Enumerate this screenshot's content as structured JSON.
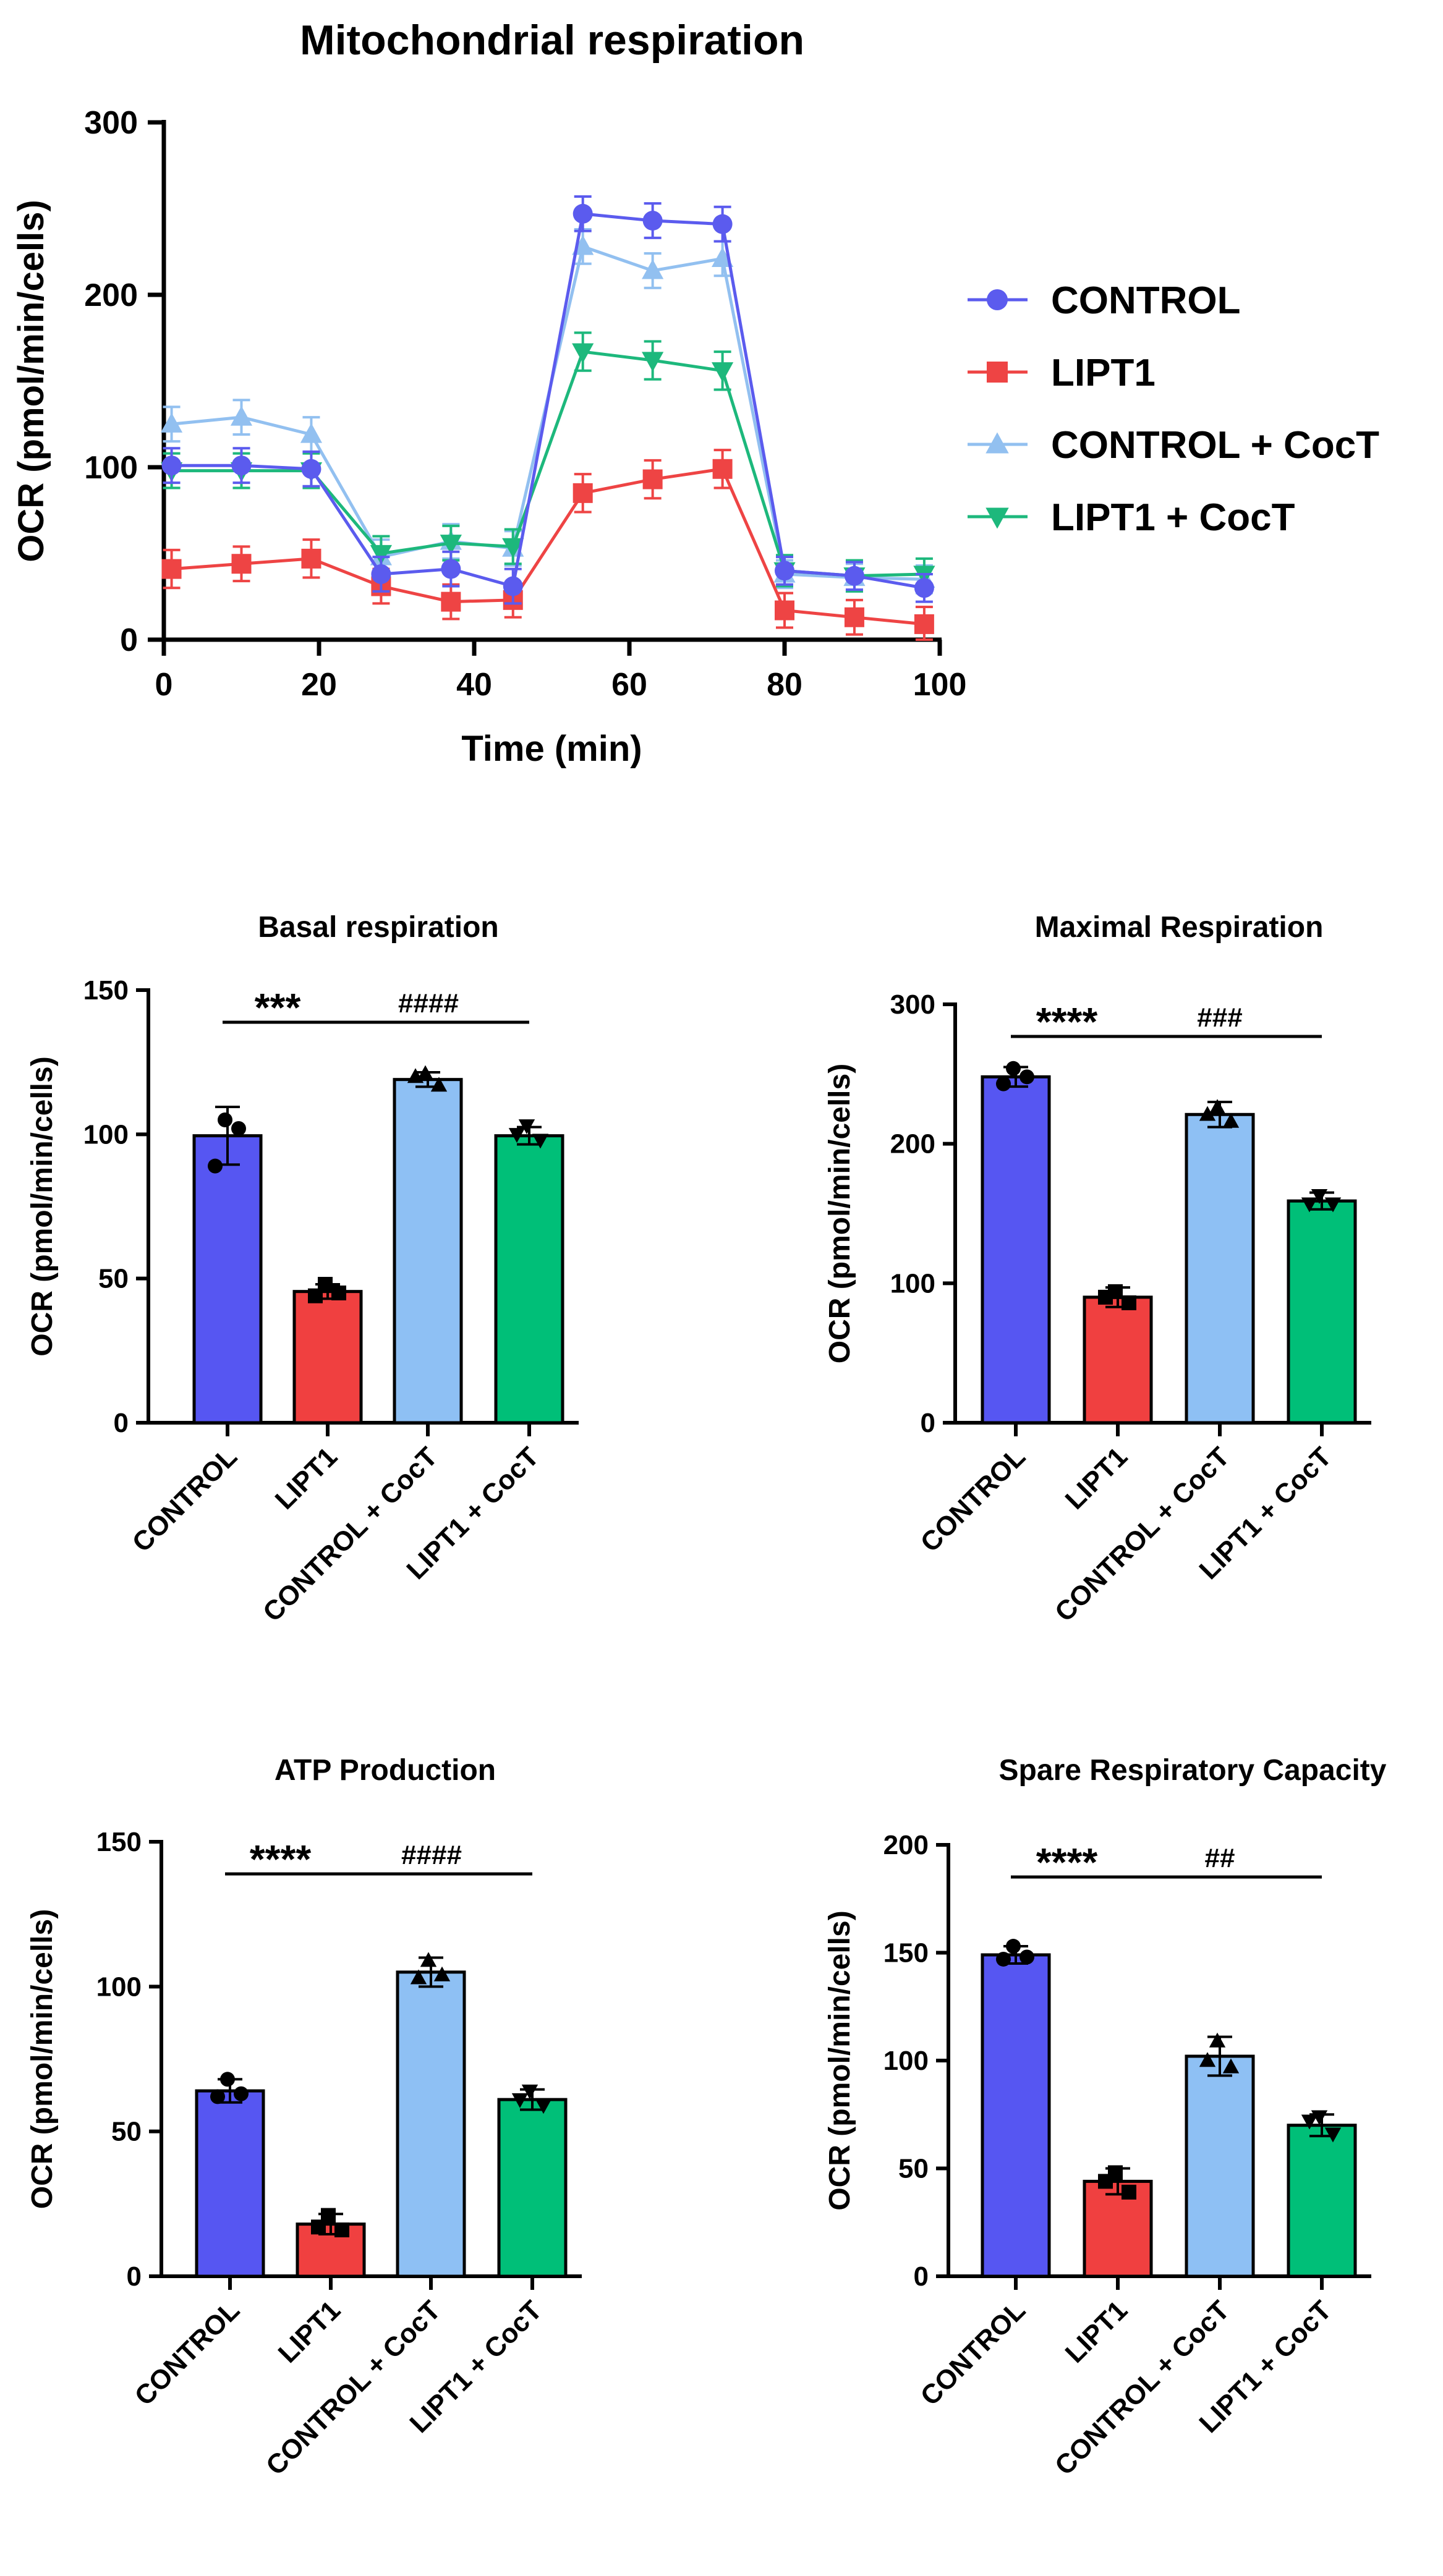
{
  "figure": {
    "panels": [
      "line",
      "basal",
      "maximal",
      "atp",
      "spare"
    ]
  },
  "chart_data": [
    {
      "id": "line",
      "type": "line",
      "title": "Mitochondrial respiration",
      "xlabel": "Time (min)",
      "ylabel": "OCR (pmol/min/cells)",
      "xlim": [
        0,
        100
      ],
      "ylim": [
        0,
        300
      ],
      "xticks": [
        0,
        20,
        40,
        60,
        80,
        100
      ],
      "yticks": [
        0,
        100,
        200,
        300
      ],
      "x": [
        1,
        10,
        19,
        28,
        37,
        45,
        54,
        63,
        72,
        80,
        89,
        98
      ],
      "legend_position": "right",
      "series": [
        {
          "name": "CONTROL",
          "color": "#5B5BEE",
          "marker": "circle",
          "values": [
            101,
            101,
            99,
            38,
            41,
            31,
            247,
            243,
            241,
            40,
            37,
            30
          ],
          "errors": [
            10,
            10,
            10,
            10,
            10,
            10,
            10,
            10,
            10,
            8,
            8,
            8
          ]
        },
        {
          "name": "LIPT1",
          "color": "#EE4444",
          "marker": "square",
          "values": [
            41,
            44,
            47,
            31,
            22,
            23,
            85,
            93,
            99,
            17,
            13,
            9
          ],
          "errors": [
            11,
            10,
            11,
            10,
            10,
            10,
            11,
            11,
            11,
            10,
            10,
            10
          ]
        },
        {
          "name": "CONTROL + CocT",
          "color": "#92C0F0",
          "marker": "triangle-up",
          "values": [
            125,
            129,
            119,
            48,
            57,
            53,
            228,
            214,
            221,
            38,
            36,
            35
          ],
          "errors": [
            10,
            10,
            10,
            10,
            10,
            10,
            10,
            10,
            10,
            8,
            8,
            8
          ]
        },
        {
          "name": "LIPT1 + CocT",
          "color": "#1DB87C",
          "marker": "triangle-down",
          "values": [
            98,
            98,
            98,
            50,
            56,
            54,
            167,
            162,
            156,
            40,
            37,
            38
          ],
          "errors": [
            10,
            10,
            10,
            10,
            10,
            10,
            11,
            11,
            11,
            9,
            9,
            9
          ]
        }
      ]
    },
    {
      "id": "basal",
      "type": "bar",
      "title": "Basal respiration",
      "ylabel": "OCR (pmol/min/cells)",
      "ylim": [
        0,
        150
      ],
      "yticks": [
        0,
        50,
        100,
        150
      ],
      "categories": [
        "CONTROL",
        "LIPT1",
        "CONTROL + CocT",
        "LIPT1 + CocT"
      ],
      "values": [
        99.5,
        45.5,
        119,
        99.5
      ],
      "errors": [
        10,
        2.5,
        2.5,
        3
      ],
      "points": [
        [
          105,
          102,
          89
        ],
        [
          48,
          45,
          44
        ],
        [
          121,
          117,
          120
        ],
        [
          103,
          98,
          100
        ]
      ],
      "significance": [
        {
          "label": "***",
          "from": 0,
          "to": 1
        },
        {
          "label": "####",
          "from": 1,
          "to": 3
        }
      ]
    },
    {
      "id": "maximal",
      "type": "bar",
      "title": "Maximal Respiration",
      "ylabel": "OCR (pmol/min/cells)",
      "ylim": [
        0,
        300
      ],
      "yticks": [
        0,
        100,
        200,
        300
      ],
      "categories": [
        "CONTROL",
        "LIPT1",
        "CONTROL + CocT",
        "LIPT1 + CocT"
      ],
      "values": [
        248,
        90,
        221,
        159
      ],
      "errors": [
        7,
        7,
        9,
        6
      ],
      "points": [
        [
          254,
          248,
          243
        ],
        [
          94,
          86,
          90
        ],
        [
          226,
          216,
          221
        ],
        [
          163,
          157,
          157
        ]
      ],
      "significance": [
        {
          "label": "****",
          "from": 0,
          "to": 1
        },
        {
          "label": "###",
          "from": 1,
          "to": 3
        }
      ]
    },
    {
      "id": "atp",
      "type": "bar",
      "title": "ATP Production",
      "ylabel": "OCR (pmol/min/cells)",
      "ylim": [
        0,
        150
      ],
      "yticks": [
        0,
        50,
        100,
        150
      ],
      "categories": [
        "CONTROL",
        "LIPT1",
        "CONTROL + CocT",
        "LIPT1 + CocT"
      ],
      "values": [
        64,
        18,
        105,
        61
      ],
      "errors": [
        4,
        3.5,
        5,
        3.5
      ],
      "points": [
        [
          68,
          63,
          62
        ],
        [
          21,
          16,
          17
        ],
        [
          109,
          104,
          103
        ],
        [
          64,
          59,
          61
        ]
      ],
      "significance": [
        {
          "label": "****",
          "from": 0,
          "to": 1
        },
        {
          "label": "####",
          "from": 1,
          "to": 3
        }
      ]
    },
    {
      "id": "spare",
      "type": "bar",
      "title": "Spare Respiratory Capacity",
      "ylabel": "OCR (pmol/min/cells)",
      "ylim": [
        0,
        200
      ],
      "yticks": [
        0,
        50,
        100,
        150,
        200
      ],
      "categories": [
        "CONTROL",
        "LIPT1",
        "CONTROL + CocT",
        "LIPT1 + CocT"
      ],
      "values": [
        149,
        44,
        102,
        70
      ],
      "errors": [
        4,
        6,
        9,
        5
      ],
      "points": [
        [
          153,
          148,
          147
        ],
        [
          48,
          39,
          44
        ],
        [
          109,
          97,
          100
        ],
        [
          74,
          66,
          72
        ]
      ],
      "significance": [
        {
          "label": "****",
          "from": 0,
          "to": 1
        },
        {
          "label": "##",
          "from": 1,
          "to": 3
        }
      ]
    }
  ],
  "bar_colors": [
    "#5656F2",
    "#F04040",
    "#8EC0F4",
    "#00BF78"
  ],
  "bar_markers": [
    "circle",
    "square",
    "triangle-up",
    "triangle-down"
  ]
}
